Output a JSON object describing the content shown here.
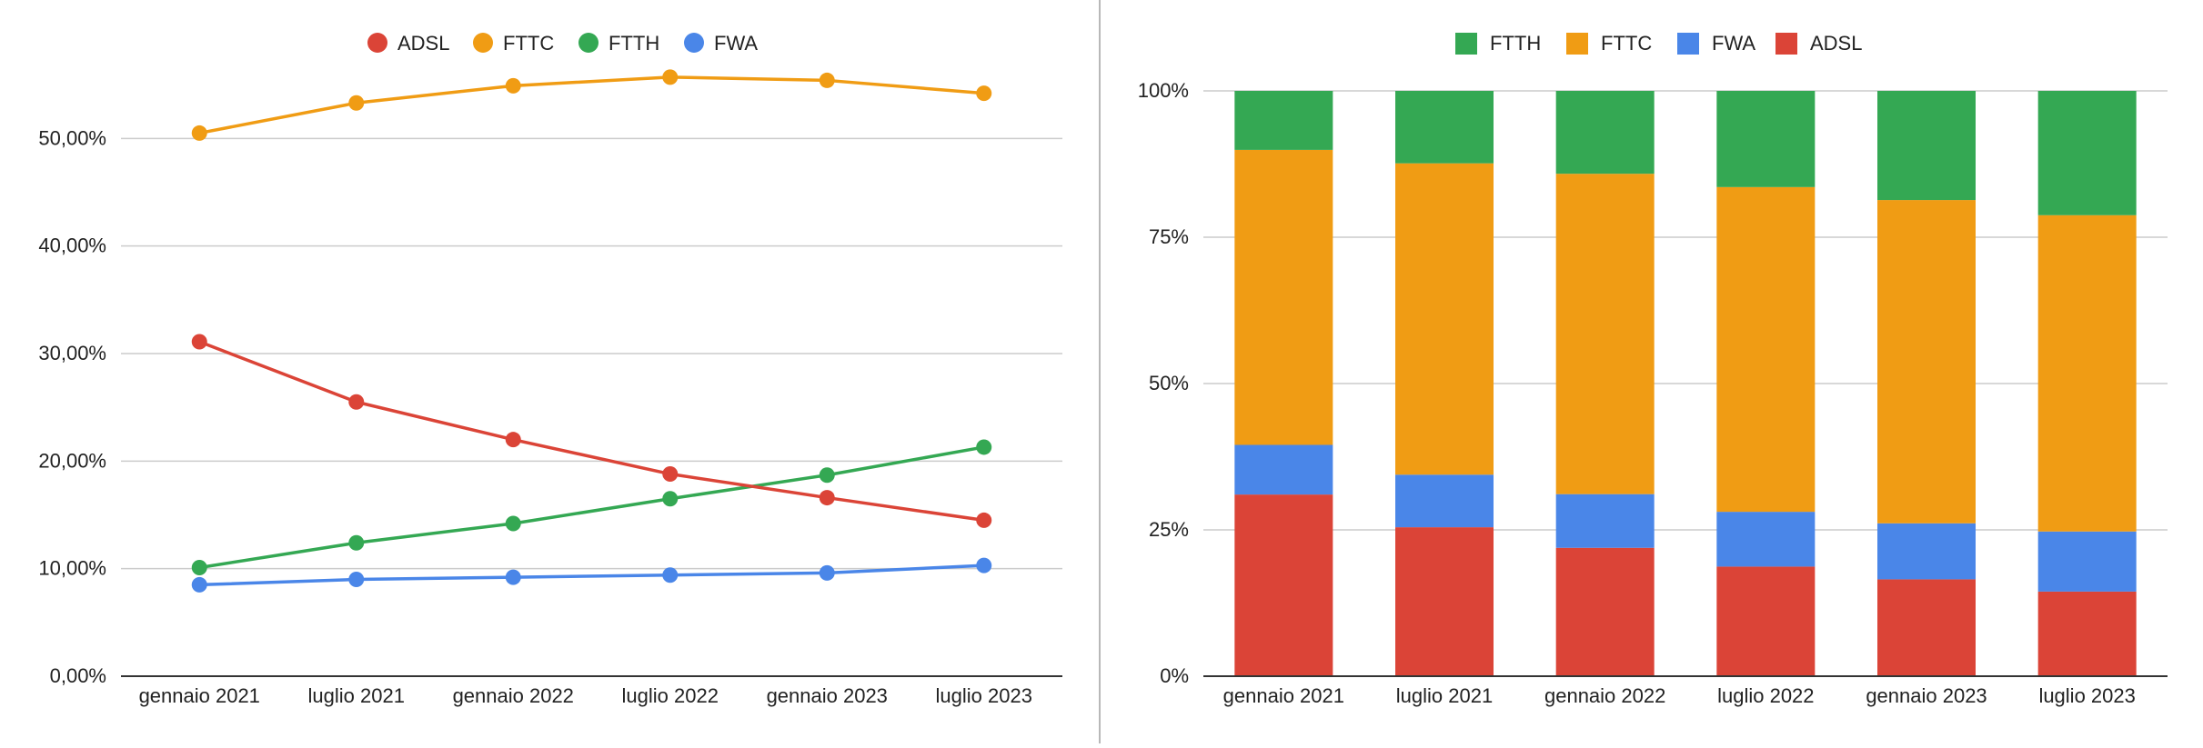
{
  "colors": {
    "ADSL": "#db4437",
    "FTTC": "#f09c14",
    "FTTH": "#34a853",
    "FWA": "#4a86e8"
  },
  "chart_data": [
    {
      "type": "line",
      "categories": [
        "gennaio 2021",
        "luglio 2021",
        "gennaio 2022",
        "luglio 2022",
        "gennaio 2023",
        "luglio 2023"
      ],
      "y_ticks": [
        "0,00%",
        "10,00%",
        "20,00%",
        "30,00%",
        "40,00%",
        "50,00%"
      ],
      "ylim": [
        0,
        0.6
      ],
      "grid": true,
      "legend": "top",
      "legend_order": [
        "ADSL",
        "FTTC",
        "FTTH",
        "FWA"
      ],
      "series": [
        {
          "name": "ADSL",
          "values": [
            0.311,
            0.255,
            0.22,
            0.188,
            0.166,
            0.145
          ]
        },
        {
          "name": "FTTC",
          "values": [
            0.505,
            0.533,
            0.549,
            0.557,
            0.554,
            0.542
          ]
        },
        {
          "name": "FTTH",
          "values": [
            0.101,
            0.124,
            0.142,
            0.165,
            0.187,
            0.213
          ]
        },
        {
          "name": "FWA",
          "values": [
            0.085,
            0.09,
            0.092,
            0.094,
            0.096,
            0.103
          ]
        }
      ]
    },
    {
      "type": "bar",
      "stacked": "100%",
      "categories": [
        "gennaio 2021",
        "luglio 2021",
        "gennaio 2022",
        "luglio 2022",
        "gennaio 2023",
        "luglio 2023"
      ],
      "y_ticks": [
        "0%",
        "25%",
        "50%",
        "75%",
        "100%"
      ],
      "ylim": [
        0,
        1
      ],
      "grid": true,
      "legend": "top",
      "legend_order": [
        "FTTH",
        "FTTC",
        "FWA",
        "ADSL"
      ],
      "stack_order": [
        "ADSL",
        "FWA",
        "FTTC",
        "FTTH"
      ],
      "series": [
        {
          "name": "ADSL",
          "values": [
            0.311,
            0.255,
            0.22,
            0.188,
            0.166,
            0.145
          ]
        },
        {
          "name": "FWA",
          "values": [
            0.085,
            0.09,
            0.092,
            0.094,
            0.096,
            0.103
          ]
        },
        {
          "name": "FTTC",
          "values": [
            0.505,
            0.533,
            0.549,
            0.557,
            0.554,
            0.542
          ]
        },
        {
          "name": "FTTH",
          "values": [
            0.101,
            0.124,
            0.142,
            0.165,
            0.187,
            0.213
          ]
        }
      ]
    }
  ]
}
